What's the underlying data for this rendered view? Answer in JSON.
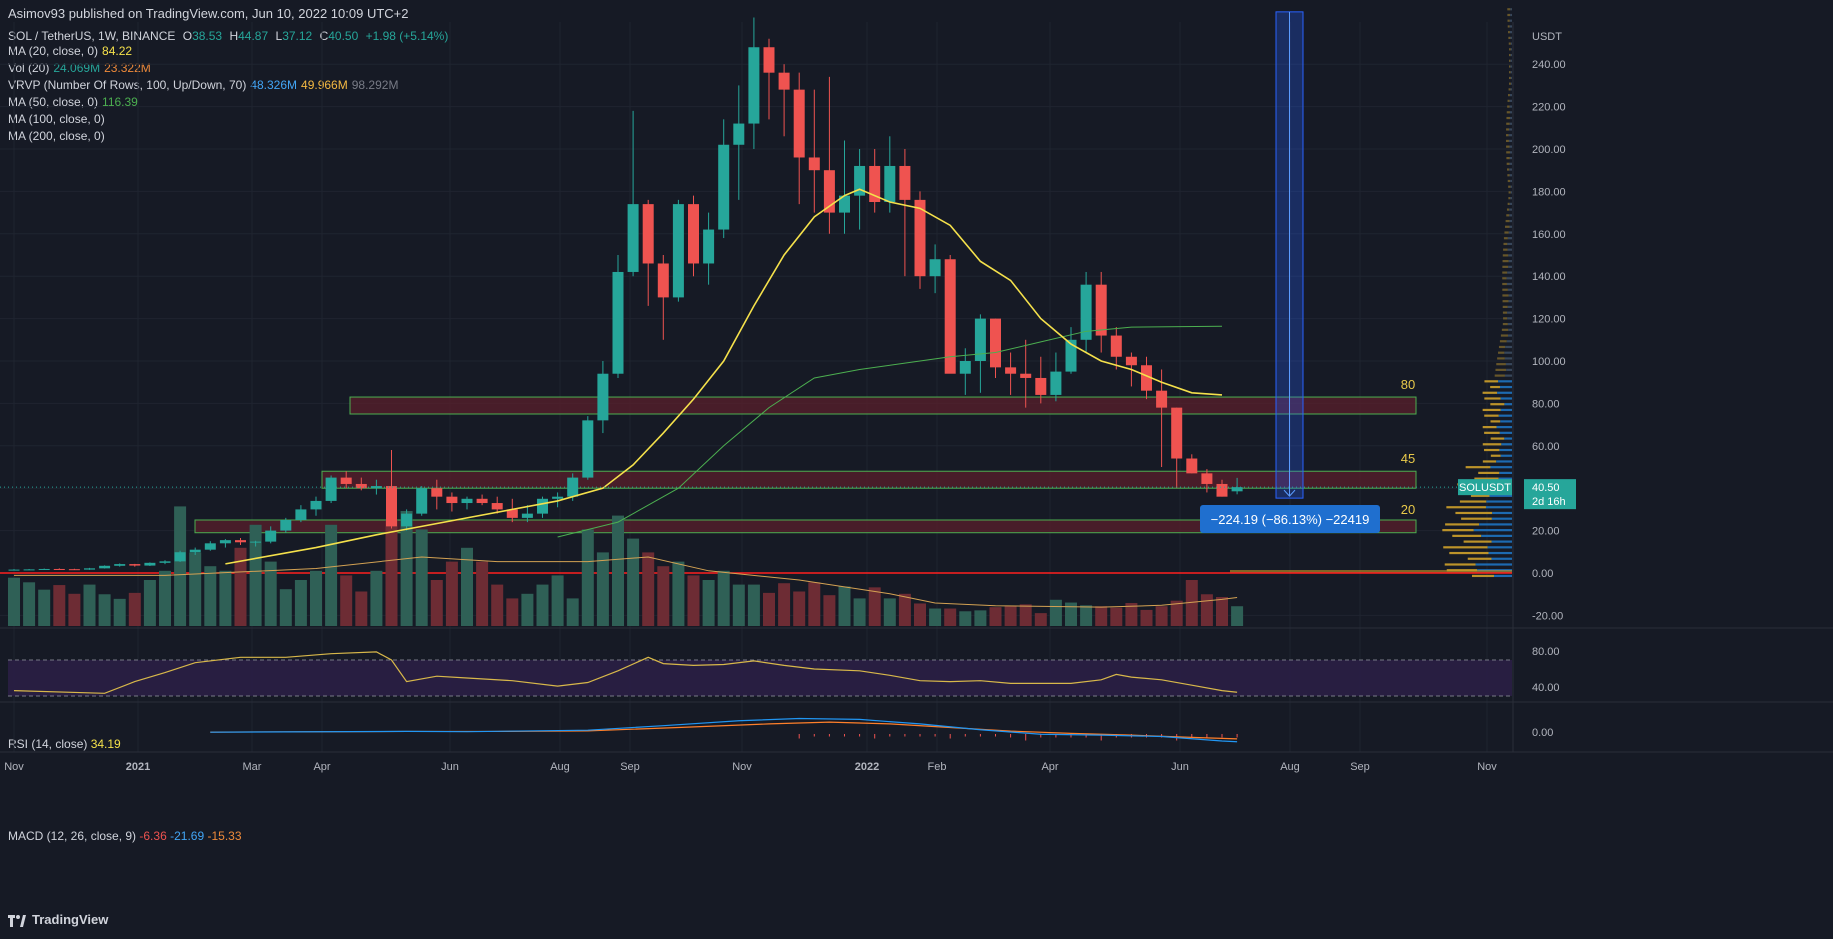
{
  "header": {
    "published": "Asimov93 published on TradingView.com, Jun 10, 2022 10:09 UTC+2"
  },
  "legend": {
    "symbol": "SOL / TetherUS, 1W, BINANCE",
    "ohlc": {
      "o_label": "O",
      "o": "38.53",
      "h_label": "H",
      "h": "44.87",
      "l_label": "L",
      "l": "37.12",
      "c_label": "C",
      "c": "40.50",
      "chg": "+1.98 (+5.14%)"
    },
    "ma20": {
      "label": "MA (20, close, 0)",
      "value": "84.22"
    },
    "vol": {
      "label": "Vol (20)",
      "v1": "24.069M",
      "v2": "23.322M"
    },
    "vrvp": {
      "label": "VRVP (Number Of Rows, 100, Up/Down, 70)",
      "v1": "48.326M",
      "v2": "49.966M",
      "v3": "98.292M"
    },
    "ma50": {
      "label": "MA (50, close, 0)",
      "value": "116.39"
    },
    "ma100": {
      "label": "MA (100, close, 0)"
    },
    "ma200": {
      "label": "MA (200, close, 0)"
    }
  },
  "rsi": {
    "label": "RSI (14, close)",
    "value": "34.19"
  },
  "macd": {
    "label": "MACD (12, 26, close, 9)",
    "v1": "-6.36",
    "v2": "-21.69",
    "v3": "-15.33"
  },
  "price_tag": {
    "symbol": "SOLUSDT",
    "price": "40.50",
    "time": "2d 16h"
  },
  "measure_label": "−224.19 (−86.13%) −22419",
  "zone_labels": [
    "80",
    "45",
    "20"
  ],
  "footer": {
    "brand": "TradingView"
  },
  "colors": {
    "background": "#161a25",
    "up": "#26a69a",
    "down": "#ef5350",
    "ma20": "#f5e14b",
    "ma50": "#4caf50",
    "rsi": "#d8b84a",
    "macd": "#2196f3",
    "signal": "#ff7f2a",
    "zone_fill": "#5a1f2b",
    "zone_border": "#4caf50",
    "measure": "#2962ff",
    "support": "#ff1f1f"
  },
  "chart_data": {
    "type": "candlestick",
    "title": "SOL / TetherUS, 1W, BINANCE",
    "quote_unit": "USDT",
    "price_axis": {
      "ticks": [
        -20,
        0,
        20,
        40,
        60,
        80,
        100,
        120,
        140,
        160,
        180,
        200,
        220,
        240
      ],
      "unit_label": "USDT"
    },
    "time_axis": {
      "labels": [
        "Nov",
        "2021",
        "Mar",
        "Apr",
        "Jun",
        "Aug",
        "Sep",
        "Nov",
        "2022",
        "Feb",
        "Apr",
        "Jun",
        "Aug",
        "Sep",
        "Nov"
      ]
    },
    "candles": [
      [
        1.5,
        1.8,
        1.3,
        1.6
      ],
      [
        1.6,
        1.9,
        1.4,
        1.7
      ],
      [
        1.7,
        2.1,
        1.5,
        1.9
      ],
      [
        1.9,
        2.2,
        1.7,
        1.8
      ],
      [
        1.8,
        2.0,
        1.5,
        1.6
      ],
      [
        1.6,
        2.4,
        1.5,
        2.2
      ],
      [
        2.2,
        3.6,
        2.1,
        3.4
      ],
      [
        3.4,
        4.5,
        3.0,
        4.2
      ],
      [
        4.2,
        4.3,
        3.0,
        3.5
      ],
      [
        3.5,
        5.0,
        3.3,
        4.8
      ],
      [
        4.8,
        6.0,
        4.2,
        5.5
      ],
      [
        5.5,
        10.5,
        5.2,
        9.8
      ],
      [
        9.8,
        12.0,
        8.5,
        11.0
      ],
      [
        11,
        15,
        10.5,
        14
      ],
      [
        14,
        16,
        12,
        15.5
      ],
      [
        15.5,
        16.5,
        13.2,
        14.5
      ],
      [
        14.5,
        15.2,
        12.5,
        14.8
      ],
      [
        14.8,
        22,
        14,
        20
      ],
      [
        20,
        26,
        19,
        25
      ],
      [
        25,
        32,
        24,
        30
      ],
      [
        30,
        36,
        27,
        34
      ],
      [
        34,
        46,
        33,
        45
      ],
      [
        45,
        48,
        40,
        42
      ],
      [
        42,
        45,
        39,
        40
      ],
      [
        40,
        44,
        37,
        41
      ],
      [
        41,
        58,
        21,
        22
      ],
      [
        22,
        30,
        20,
        28
      ],
      [
        28,
        41,
        27,
        40
      ],
      [
        40,
        44,
        30,
        36
      ],
      [
        36,
        38,
        29,
        33
      ],
      [
        33,
        36,
        30,
        35
      ],
      [
        35,
        37,
        32,
        33
      ],
      [
        33,
        36,
        28,
        30
      ],
      [
        30,
        35,
        24,
        26
      ],
      [
        26,
        32,
        24,
        28
      ],
      [
        28,
        36,
        26,
        35
      ],
      [
        35,
        38,
        31,
        36
      ],
      [
        36,
        47,
        34,
        45
      ],
      [
        45,
        74,
        44,
        72
      ],
      [
        72,
        100,
        66,
        94
      ],
      [
        94,
        150,
        92,
        142
      ],
      [
        142,
        218,
        140,
        174
      ],
      [
        174,
        176,
        126,
        146
      ],
      [
        146,
        150,
        110,
        130
      ],
      [
        130,
        176,
        128,
        174
      ],
      [
        174,
        178,
        140,
        146
      ],
      [
        146,
        170,
        136,
        162
      ],
      [
        162,
        214,
        158,
        202
      ],
      [
        202,
        230,
        176,
        212
      ],
      [
        212,
        262,
        200,
        248
      ],
      [
        248,
        252,
        214,
        236
      ],
      [
        236,
        240,
        206,
        228
      ],
      [
        228,
        236,
        174,
        196
      ],
      [
        196,
        228,
        170,
        190
      ],
      [
        190,
        234,
        160,
        170
      ],
      [
        170,
        204,
        160,
        178
      ],
      [
        178,
        200,
        162,
        192
      ],
      [
        192,
        200,
        170,
        175
      ],
      [
        175,
        206,
        170,
        192
      ],
      [
        192,
        200,
        140,
        176
      ],
      [
        176,
        180,
        134,
        140
      ],
      [
        140,
        155,
        132,
        148
      ],
      [
        148,
        150,
        95,
        94
      ],
      [
        94,
        106,
        84,
        100
      ],
      [
        100,
        122,
        85,
        120
      ],
      [
        120,
        120,
        92,
        97
      ],
      [
        97,
        104,
        84,
        94
      ],
      [
        94,
        110,
        78,
        92
      ],
      [
        92,
        102,
        80,
        84
      ],
      [
        84,
        104,
        81,
        95
      ],
      [
        95,
        116,
        94,
        110
      ],
      [
        110,
        142,
        104,
        136
      ],
      [
        136,
        142,
        104,
        112
      ],
      [
        112,
        116,
        96,
        102
      ],
      [
        102,
        104,
        88,
        98
      ],
      [
        98,
        102,
        82,
        86
      ],
      [
        86,
        96,
        50,
        78
      ],
      [
        78,
        78,
        40,
        54
      ],
      [
        54,
        56,
        47,
        47
      ],
      [
        47,
        49,
        38,
        42
      ],
      [
        42,
        44,
        36,
        36
      ],
      [
        38.53,
        44.87,
        37.12,
        40.5
      ]
    ],
    "volume_m": [
      10.5,
      9.5,
      7.9,
      8.9,
      7.0,
      9.0,
      6.9,
      5.9,
      7.2,
      10,
      12,
      26,
      16,
      13,
      12,
      17,
      22,
      14,
      8,
      10,
      12,
      22,
      11,
      7.5,
      12,
      23,
      25,
      21,
      10,
      14,
      17,
      14,
      9,
      6,
      7,
      9,
      11,
      6,
      21,
      16,
      24,
      19,
      16,
      13,
      14,
      11,
      10,
      12,
      9,
      9,
      7.2,
      9.3,
      7.5,
      9.5,
      6.7,
      8.6,
      6,
      8.4,
      6,
      7,
      4.9,
      3.8,
      3.8,
      3.2,
      3.4,
      4.1,
      4.4,
      4.7,
      2.8,
      5.7,
      5.1,
      4.5,
      4.3,
      4,
      5,
      3.5,
      4.3,
      5.5,
      10,
      6.9,
      6.3,
      4.3
    ],
    "ma20": [
      [
        14,
        4.3
      ],
      [
        20,
        12
      ],
      [
        24,
        18
      ],
      [
        27,
        22
      ],
      [
        30,
        26
      ],
      [
        33,
        30
      ],
      [
        36,
        34
      ],
      [
        39,
        40
      ],
      [
        41,
        51
      ],
      [
        43,
        66
      ],
      [
        45,
        82
      ],
      [
        47,
        100
      ],
      [
        49,
        126
      ],
      [
        51,
        150
      ],
      [
        53,
        168
      ],
      [
        55,
        178
      ],
      [
        56,
        181
      ],
      [
        58,
        175
      ],
      [
        60,
        172
      ],
      [
        62,
        164
      ],
      [
        64,
        147
      ],
      [
        66,
        138
      ],
      [
        68,
        120
      ],
      [
        70,
        108
      ],
      [
        72,
        100
      ],
      [
        74,
        96
      ],
      [
        76,
        90
      ],
      [
        78,
        85
      ],
      [
        80,
        84
      ]
    ],
    "ma50": [
      [
        36,
        17
      ],
      [
        40,
        24
      ],
      [
        44,
        40
      ],
      [
        47,
        60
      ],
      [
        50,
        78
      ],
      [
        53,
        92
      ],
      [
        56,
        96
      ],
      [
        59,
        99
      ],
      [
        62,
        102
      ],
      [
        65,
        104
      ],
      [
        68,
        109
      ],
      [
        71,
        114
      ],
      [
        74,
        116
      ],
      [
        80,
        116.4
      ]
    ],
    "volume_ma": [
      [
        0,
        11
      ],
      [
        10,
        11
      ],
      [
        20,
        12.5
      ],
      [
        27,
        15
      ],
      [
        32,
        14
      ],
      [
        38,
        14
      ],
      [
        42,
        15
      ],
      [
        46,
        12
      ],
      [
        52,
        10
      ],
      [
        58,
        7
      ],
      [
        61,
        5
      ],
      [
        65,
        4.4
      ],
      [
        72,
        4.1
      ],
      [
        76,
        4.5
      ],
      [
        80,
        5.8
      ],
      [
        81,
        6.2
      ]
    ],
    "rsi": {
      "levels": [
        70,
        30
      ],
      "values": [
        [
          0,
          36
        ],
        [
          6,
          33
        ],
        [
          8,
          46
        ],
        [
          10,
          56
        ],
        [
          12,
          67
        ],
        [
          15,
          73
        ],
        [
          18,
          73
        ],
        [
          21,
          77
        ],
        [
          24,
          79
        ],
        [
          25,
          70
        ],
        [
          26,
          46
        ],
        [
          28,
          52
        ],
        [
          30,
          50
        ],
        [
          33,
          47
        ],
        [
          36,
          41
        ],
        [
          38,
          45
        ],
        [
          40,
          58
        ],
        [
          42,
          73
        ],
        [
          43,
          66
        ],
        [
          45,
          64
        ],
        [
          47,
          65
        ],
        [
          49,
          69
        ],
        [
          51,
          64
        ],
        [
          53,
          60
        ],
        [
          56,
          58
        ],
        [
          58,
          53
        ],
        [
          60,
          47
        ],
        [
          62,
          46
        ],
        [
          64,
          47
        ],
        [
          66,
          44
        ],
        [
          68,
          44
        ],
        [
          70,
          44
        ],
        [
          72,
          48
        ],
        [
          73,
          54
        ],
        [
          74,
          51
        ],
        [
          76,
          48
        ],
        [
          78,
          42
        ],
        [
          80,
          36
        ],
        [
          81,
          34.2
        ]
      ]
    },
    "macd": {
      "macd": [
        [
          13,
          -0.4
        ],
        [
          26,
          1.4
        ],
        [
          30,
          0.7
        ],
        [
          38,
          4
        ],
        [
          43,
          14
        ],
        [
          48,
          25
        ],
        [
          52,
          30
        ],
        [
          56,
          28
        ],
        [
          60,
          18
        ],
        [
          64,
          5
        ],
        [
          68,
          -5
        ],
        [
          72,
          -7
        ],
        [
          76,
          -10
        ],
        [
          80,
          -20
        ],
        [
          81,
          -21.7
        ]
      ],
      "signal": [
        [
          13,
          -0.2
        ],
        [
          26,
          1.2
        ],
        [
          32,
          1.2
        ],
        [
          38,
          2.5
        ],
        [
          44,
          10
        ],
        [
          50,
          18
        ],
        [
          54,
          22
        ],
        [
          58,
          18
        ],
        [
          62,
          10
        ],
        [
          66,
          2
        ],
        [
          70,
          -3
        ],
        [
          74,
          -7
        ],
        [
          78,
          -12
        ],
        [
          81,
          -15.3
        ]
      ],
      "ticks": [
        0
      ]
    },
    "levels": [
      {
        "label": "80",
        "low": 75,
        "high": 83
      },
      {
        "label": "45",
        "low": 40,
        "high": 48
      },
      {
        "label": "20",
        "low": 19,
        "high": 25
      }
    ],
    "support_line": 0,
    "measure": {
      "from": 264.69,
      "to": 40.5,
      "change": -224.19,
      "percent": -86.13
    },
    "volume_profile_rows": 100
  }
}
